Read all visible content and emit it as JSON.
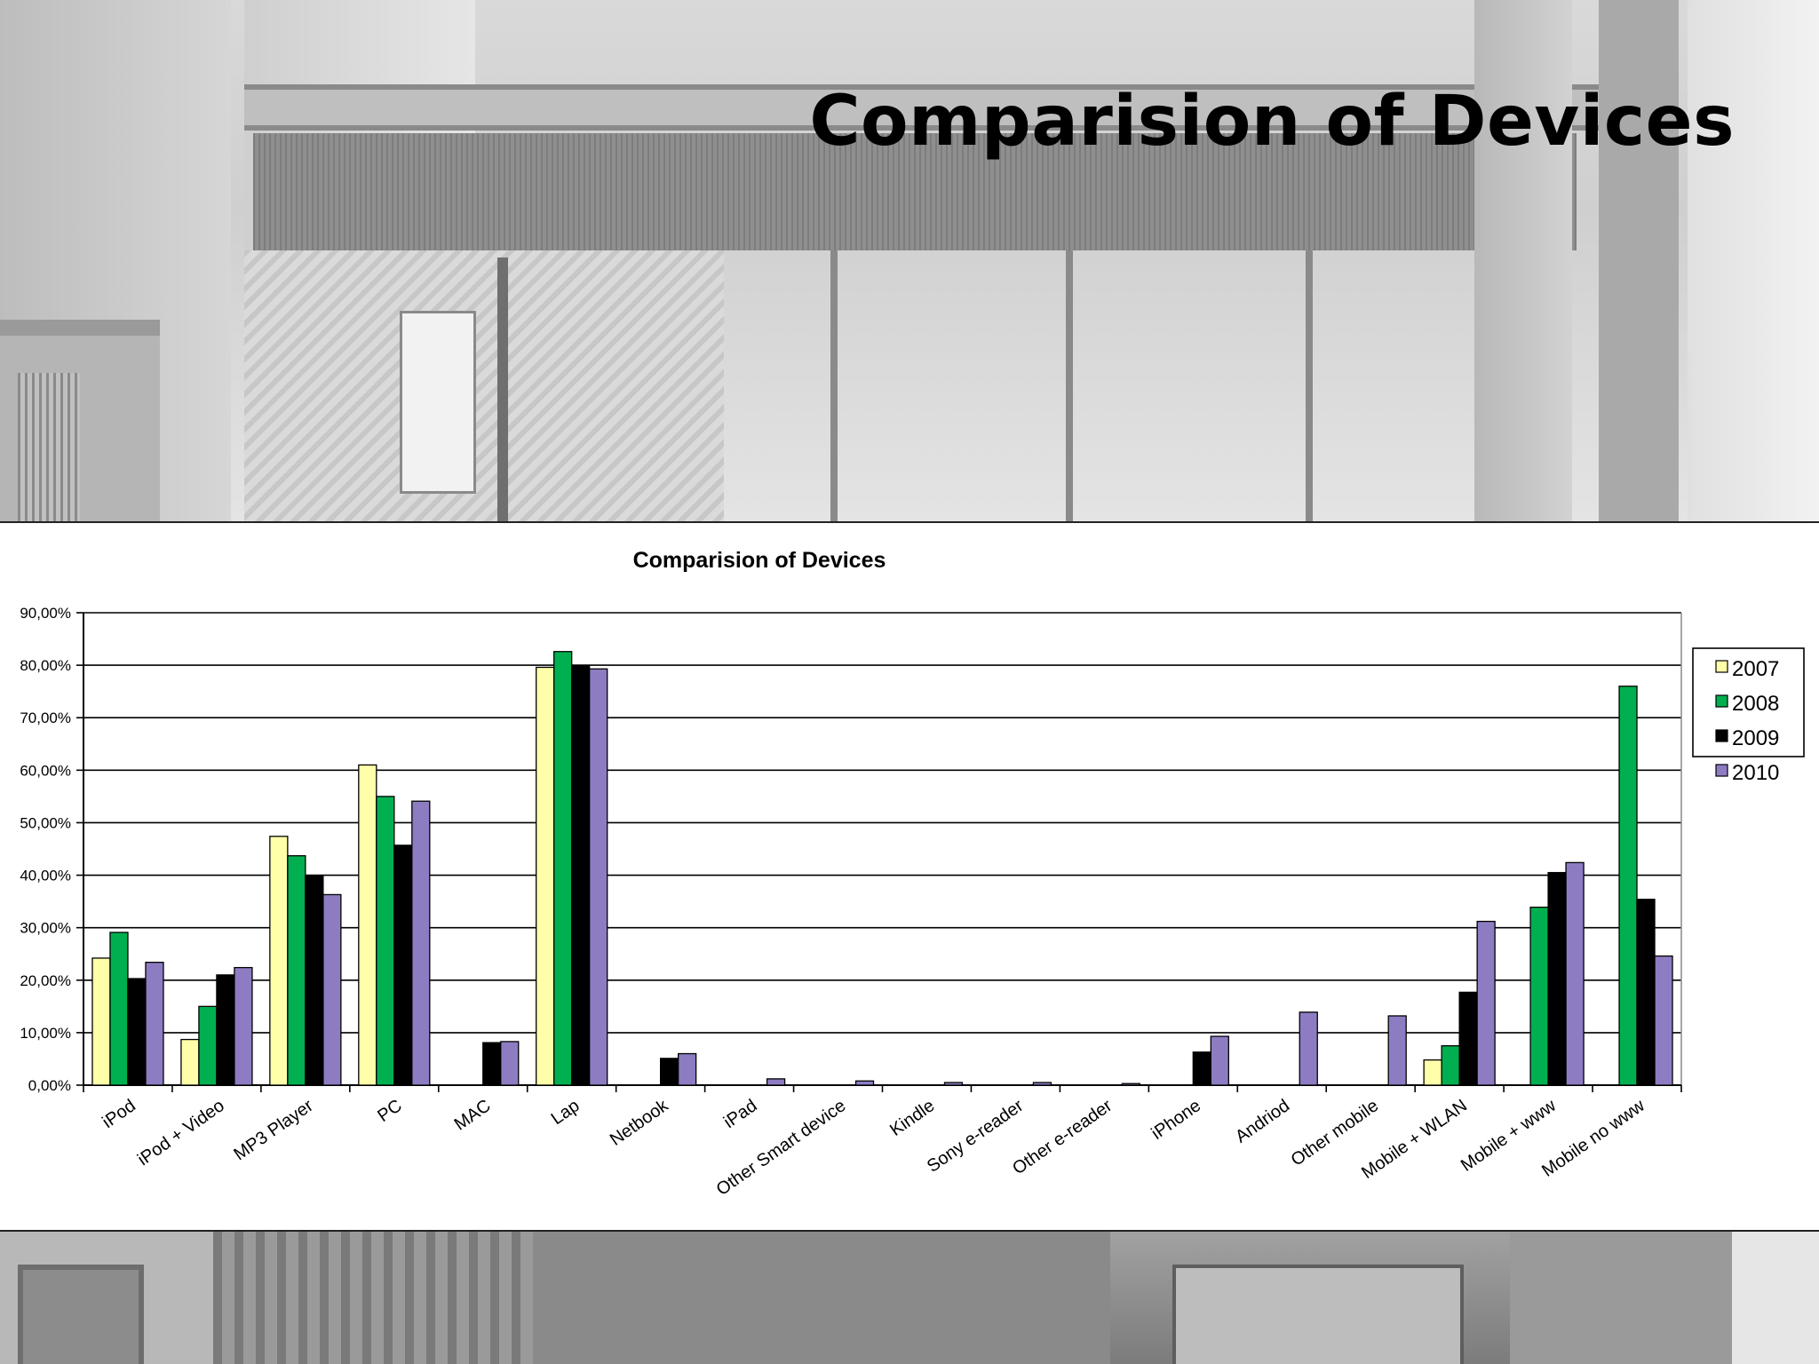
{
  "slide": {
    "title": "Comparision of Devices"
  },
  "colors": {
    "2007": "#ffffaa",
    "2008": "#00b050",
    "2009": "#000000",
    "2010": "#8e7cc3"
  },
  "chart_data": {
    "type": "bar",
    "title": "Comparision of Devices",
    "xlabel": "",
    "ylabel": "",
    "ylim": [
      0,
      90
    ],
    "yticks": [
      "0,00%",
      "10,00%",
      "20,00%",
      "30,00%",
      "40,00%",
      "50,00%",
      "60,00%",
      "70,00%",
      "80,00%",
      "90,00%"
    ],
    "grid": true,
    "legend": "right",
    "categories": [
      "iPod",
      "iPod + Video",
      "MP3 Player",
      "PC",
      "MAC",
      "Lap",
      "Netbook",
      "iPad",
      "Other Smart device",
      "Kindle",
      "Sony e-reader",
      "Other e-reader",
      "iPhone",
      "Andriod",
      "Other mobile",
      "Mobile + WLAN",
      "Mobile + www",
      "Mobile no www"
    ],
    "series": [
      {
        "name": "2007",
        "values": [
          24.2,
          8.7,
          47.4,
          61.0,
          0,
          79.6,
          0,
          0,
          0,
          0,
          0,
          0,
          0,
          0,
          0,
          4.8,
          0,
          0
        ]
      },
      {
        "name": "2008",
        "values": [
          29.1,
          15.0,
          43.7,
          55.0,
          0,
          82.6,
          0,
          0,
          0,
          0,
          0,
          0,
          0,
          0,
          0,
          7.5,
          33.9,
          76.0
        ]
      },
      {
        "name": "2009",
        "values": [
          20.3,
          21.0,
          39.9,
          45.7,
          8.1,
          80.0,
          5.1,
          0,
          0,
          0,
          0,
          0,
          6.3,
          0,
          0,
          17.7,
          40.5,
          35.4
        ]
      },
      {
        "name": "2010",
        "values": [
          23.4,
          22.4,
          36.3,
          54.1,
          8.3,
          79.3,
          6.0,
          1.2,
          0.8,
          0.5,
          0.5,
          0.3,
          9.3,
          13.9,
          13.2,
          31.2,
          42.4,
          24.6
        ]
      }
    ]
  }
}
